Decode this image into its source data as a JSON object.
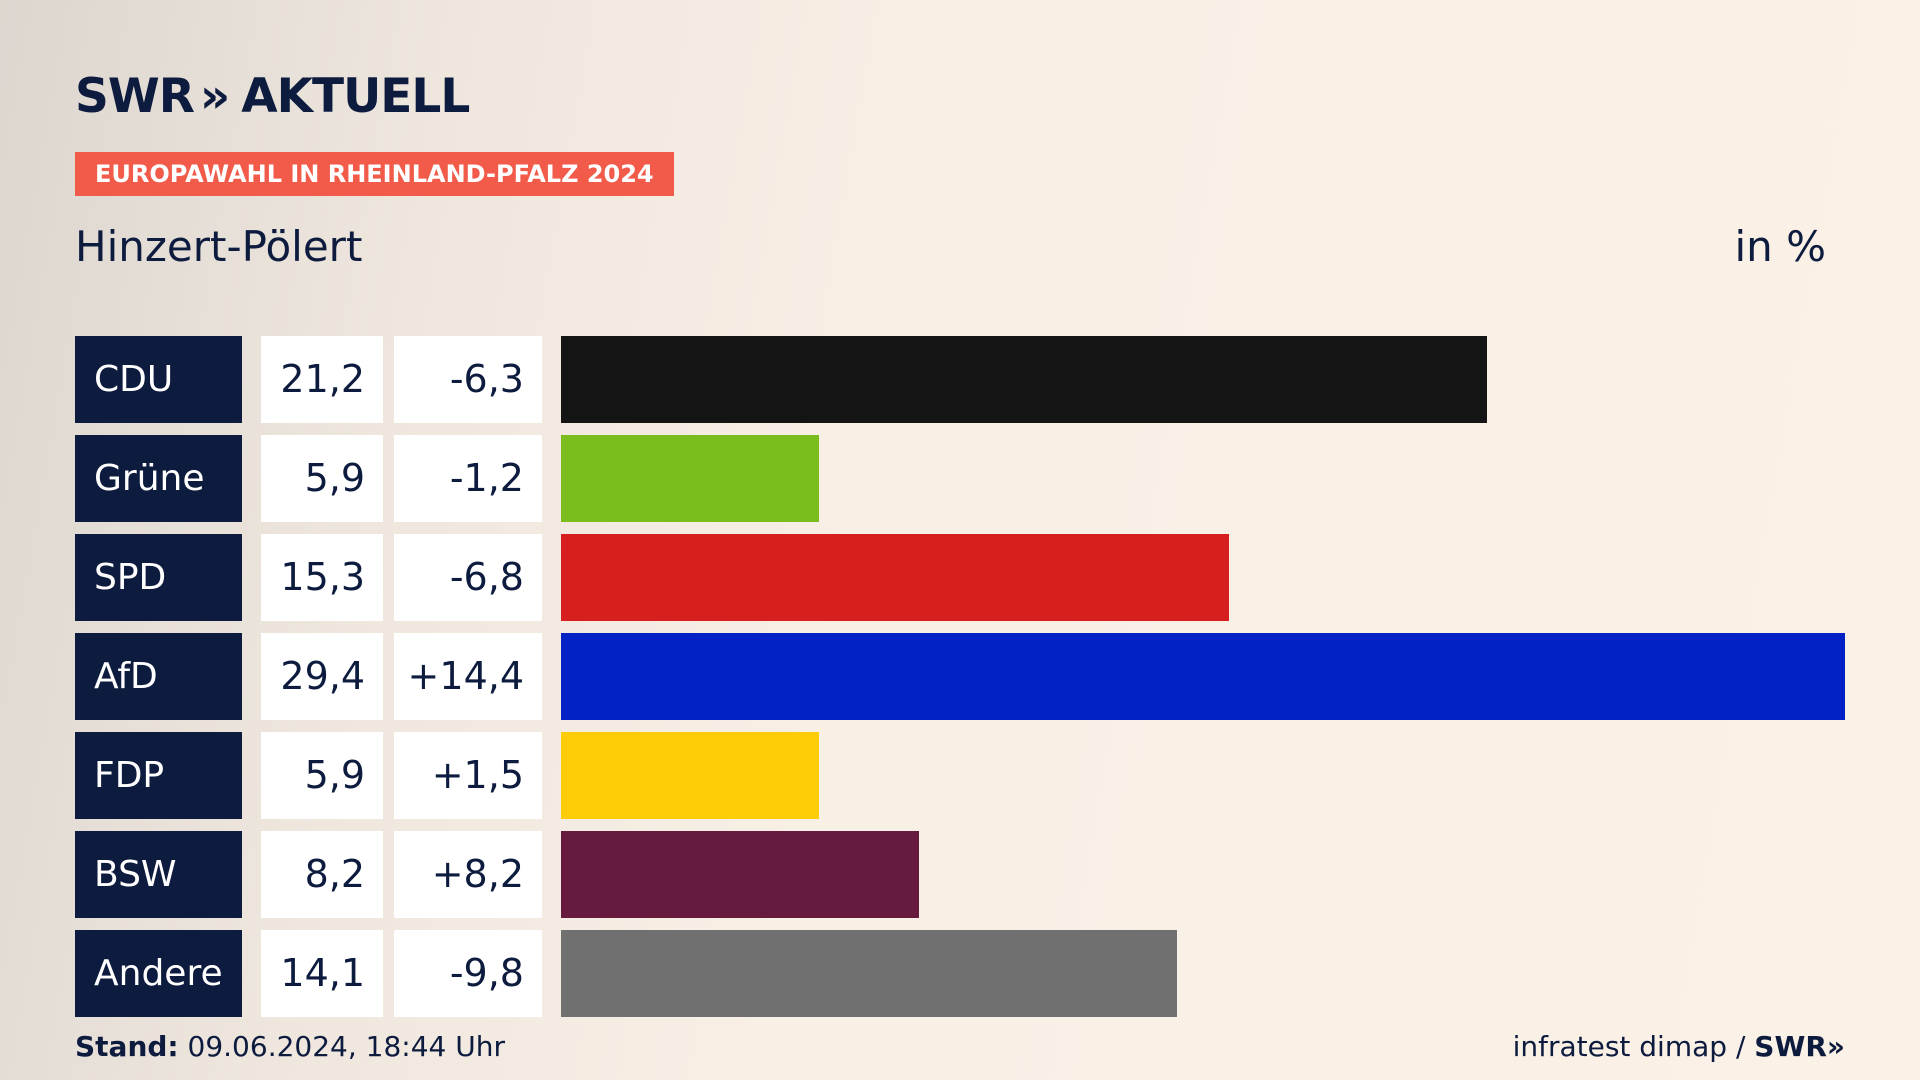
{
  "logo": {
    "left_text": "SWR",
    "chevrons": "»",
    "right_text": "AKTUELL"
  },
  "badge": "EUROPAWAHL IN RHEINLAND-PFALZ 2024",
  "subtitle": "Hinzert-Pölert",
  "unit": "in %",
  "chart_data": {
    "type": "bar",
    "orientation": "horizontal",
    "categories": [
      "CDU",
      "Grüne",
      "SPD",
      "AfD",
      "FDP",
      "BSW",
      "Andere"
    ],
    "values": [
      21.2,
      5.9,
      15.3,
      29.4,
      5.9,
      8.2,
      14.1
    ],
    "value_labels": [
      "21,2",
      "5,9",
      "15,3",
      "29,4",
      "5,9",
      "8,2",
      "14,1"
    ],
    "diff_labels": [
      "-6,3",
      "-1,2",
      "-6,8",
      "+14,4",
      "+1,5",
      "+8,2",
      "-9,8"
    ],
    "colors": [
      "#141414",
      "#7bbd1d",
      "#d81f1f",
      "#0222c5",
      "#fecd07",
      "#661a3d",
      "#707070"
    ],
    "xlim": [
      0,
      29.4
    ]
  },
  "footer": {
    "stand_label": "Stand:",
    "stand_value": "09.06.2024, 18:44 Uhr",
    "source": "infratest dimap /",
    "source_brand": "SWR»"
  }
}
